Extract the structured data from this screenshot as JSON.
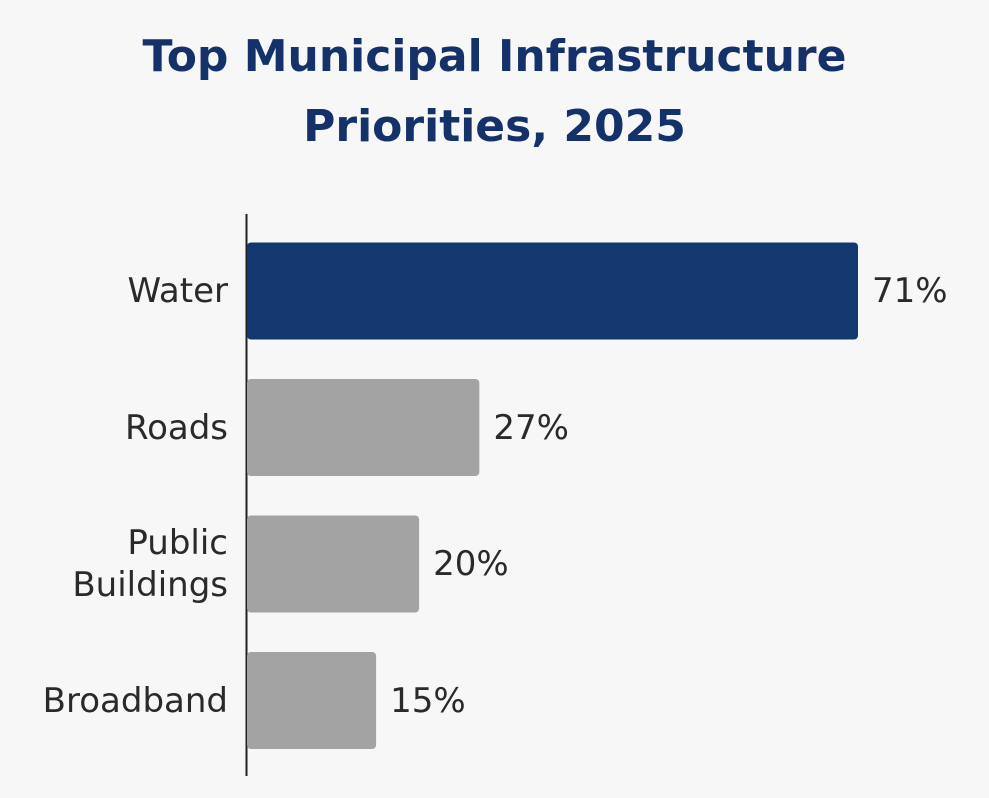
{
  "chart_data": {
    "type": "hbar",
    "title": "Top Municipal Infrastructure Priorities, 2025",
    "categories": [
      "Water",
      "Roads",
      "Public Buildings",
      "Broadband"
    ],
    "values": [
      71,
      27,
      20,
      15
    ],
    "value_labels": [
      "71%",
      "27%",
      "20%",
      "15%"
    ],
    "colors": [
      "#12386f",
      "#a3a3a3",
      "#a3a3a3",
      "#a3a3a3"
    ]
  }
}
